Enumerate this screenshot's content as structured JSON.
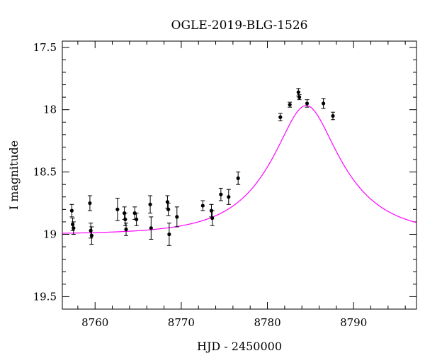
{
  "chart_data": {
    "type": "scatter",
    "title": "OGLE-2019-BLG-1526",
    "xlabel": "HJD - 2450000",
    "ylabel": "I magnitude",
    "xlim": [
      8756.2,
      8797.3
    ],
    "ylim": [
      19.6,
      17.45
    ],
    "y_inverted": true,
    "x_ticks": [
      8760,
      8770,
      8780,
      8790
    ],
    "x_tick_labels": [
      "8760",
      "8770",
      "8780",
      "8790"
    ],
    "y_ticks": [
      17.5,
      18,
      18.5,
      19,
      19.5
    ],
    "y_tick_labels": [
      "17.5",
      "18",
      "18.5",
      "19",
      "19.5"
    ],
    "grid": false,
    "colors": {
      "points": "#000000",
      "model": "#ff00ff"
    },
    "series": [
      {
        "type": "scatter-errorbar",
        "points": [
          {
            "x": 8757.3,
            "y": 18.81,
            "err": 0.05
          },
          {
            "x": 8757.4,
            "y": 18.92,
            "err": 0.05
          },
          {
            "x": 8757.5,
            "y": 18.95,
            "err": 0.05
          },
          {
            "x": 8759.4,
            "y": 18.75,
            "err": 0.06
          },
          {
            "x": 8759.5,
            "y": 18.97,
            "err": 0.06
          },
          {
            "x": 8759.6,
            "y": 19.01,
            "err": 0.07
          },
          {
            "x": 8762.6,
            "y": 18.8,
            "err": 0.09
          },
          {
            "x": 8763.4,
            "y": 18.83,
            "err": 0.05
          },
          {
            "x": 8763.5,
            "y": 18.88,
            "err": 0.05
          },
          {
            "x": 8763.6,
            "y": 18.96,
            "err": 0.05
          },
          {
            "x": 8764.6,
            "y": 18.83,
            "err": 0.05
          },
          {
            "x": 8764.8,
            "y": 18.88,
            "err": 0.05
          },
          {
            "x": 8766.4,
            "y": 18.76,
            "err": 0.07
          },
          {
            "x": 8766.5,
            "y": 18.95,
            "err": 0.09
          },
          {
            "x": 8768.4,
            "y": 18.74,
            "err": 0.05
          },
          {
            "x": 8768.5,
            "y": 18.8,
            "err": 0.05
          },
          {
            "x": 8768.6,
            "y": 19.0,
            "err": 0.09
          },
          {
            "x": 8769.5,
            "y": 18.86,
            "err": 0.08
          },
          {
            "x": 8772.5,
            "y": 18.77,
            "err": 0.04
          },
          {
            "x": 8773.5,
            "y": 18.81,
            "err": 0.05
          },
          {
            "x": 8773.6,
            "y": 18.87,
            "err": 0.06
          },
          {
            "x": 8774.6,
            "y": 18.68,
            "err": 0.05
          },
          {
            "x": 8775.5,
            "y": 18.7,
            "err": 0.06
          },
          {
            "x": 8776.6,
            "y": 18.55,
            "err": 0.05
          },
          {
            "x": 8781.5,
            "y": 18.06,
            "err": 0.03
          },
          {
            "x": 8782.6,
            "y": 17.96,
            "err": 0.02
          },
          {
            "x": 8783.6,
            "y": 17.86,
            "err": 0.03
          },
          {
            "x": 8783.7,
            "y": 17.9,
            "err": 0.02
          },
          {
            "x": 8784.6,
            "y": 17.95,
            "err": 0.03
          },
          {
            "x": 8786.5,
            "y": 17.95,
            "err": 0.04
          },
          {
            "x": 8787.6,
            "y": 18.05,
            "err": 0.03
          }
        ]
      },
      {
        "type": "model-line",
        "model": {
          "t0": 8784.5,
          "tE": 7.6,
          "u0": 0.41,
          "I_base": 19.0
        }
      }
    ]
  }
}
